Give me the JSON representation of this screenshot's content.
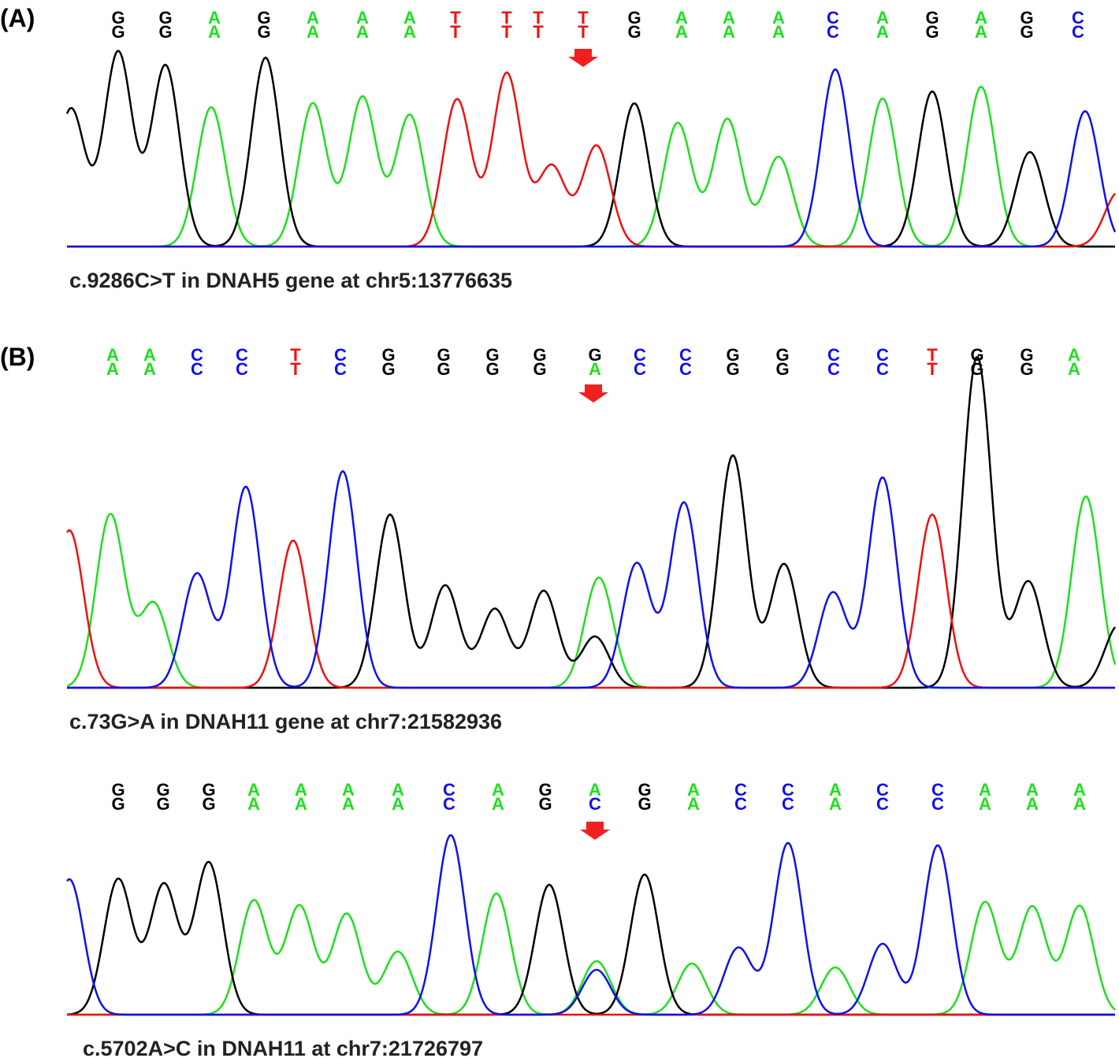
{
  "panels": [
    {
      "label": "(A)",
      "bases": [
        {
          "top": "G",
          "bottom": "G"
        },
        {
          "top": "G",
          "bottom": "G"
        },
        {
          "top": "A",
          "bottom": "A"
        },
        {
          "top": "G",
          "bottom": "G"
        },
        {
          "top": "A",
          "bottom": "A"
        },
        {
          "top": "A",
          "bottom": "A"
        },
        {
          "top": "A",
          "bottom": "A"
        },
        {
          "top": "T",
          "bottom": "T"
        },
        {
          "top": "T",
          "bottom": "T"
        },
        {
          "top": "T",
          "bottom": "T"
        },
        {
          "top": "T",
          "bottom": "T"
        },
        {
          "top": "G",
          "bottom": "G"
        },
        {
          "top": "A",
          "bottom": "A"
        },
        {
          "top": "A",
          "bottom": "A"
        },
        {
          "top": "A",
          "bottom": "A"
        },
        {
          "top": "C",
          "bottom": "C"
        },
        {
          "top": "A",
          "bottom": "A"
        },
        {
          "top": "G",
          "bottom": "G"
        },
        {
          "top": "A",
          "bottom": "A"
        },
        {
          "top": "G",
          "bottom": "G"
        },
        {
          "top": "C",
          "bottom": "C"
        }
      ],
      "caption": "c.9286C>T in DNAH5  gene at chr5:13776635"
    },
    {
      "label": "(B)",
      "bases": [
        {
          "top": "A",
          "bottom": "A"
        },
        {
          "top": "A",
          "bottom": "A"
        },
        {
          "top": "C",
          "bottom": "C"
        },
        {
          "top": "C",
          "bottom": "C"
        },
        {
          "top": "T",
          "bottom": "T"
        },
        {
          "top": "C",
          "bottom": "C"
        },
        {
          "top": "G",
          "bottom": "G"
        },
        {
          "top": "G",
          "bottom": "G"
        },
        {
          "top": "G",
          "bottom": "G"
        },
        {
          "top": "G",
          "bottom": "G"
        },
        {
          "top": "G",
          "bottom": "A"
        },
        {
          "top": "C",
          "bottom": "C"
        },
        {
          "top": "C",
          "bottom": "C"
        },
        {
          "top": "G",
          "bottom": "G"
        },
        {
          "top": "G",
          "bottom": "G"
        },
        {
          "top": "C",
          "bottom": "C"
        },
        {
          "top": "C",
          "bottom": "C"
        },
        {
          "top": "T",
          "bottom": "T"
        },
        {
          "top": "G",
          "bottom": "G"
        },
        {
          "top": "G",
          "bottom": "G"
        },
        {
          "top": "A",
          "bottom": "A"
        }
      ],
      "caption": "c.73G>A in DNAH11 gene at chr7:21582936"
    },
    {
      "bases": [
        {
          "top": "G",
          "bottom": "G"
        },
        {
          "top": "G",
          "bottom": "G"
        },
        {
          "top": "G",
          "bottom": "G"
        },
        {
          "top": "A",
          "bottom": "A"
        },
        {
          "top": "A",
          "bottom": "A"
        },
        {
          "top": "A",
          "bottom": "A"
        },
        {
          "top": "A",
          "bottom": "A"
        },
        {
          "top": "C",
          "bottom": "C"
        },
        {
          "top": "A",
          "bottom": "A"
        },
        {
          "top": "G",
          "bottom": "G"
        },
        {
          "top": "A",
          "bottom": "C"
        },
        {
          "top": "G",
          "bottom": "G"
        },
        {
          "top": "A",
          "bottom": "A"
        },
        {
          "top": "C",
          "bottom": "C"
        },
        {
          "top": "C",
          "bottom": "C"
        },
        {
          "top": "A",
          "bottom": "A"
        },
        {
          "top": "C",
          "bottom": "C"
        },
        {
          "top": "C",
          "bottom": "C"
        },
        {
          "top": "A",
          "bottom": "A"
        },
        {
          "top": "A",
          "bottom": "A"
        },
        {
          "top": "A",
          "bottom": "A"
        }
      ],
      "caption": "c.5702A>C in DNAH11 at chr7:21726797"
    }
  ]
}
